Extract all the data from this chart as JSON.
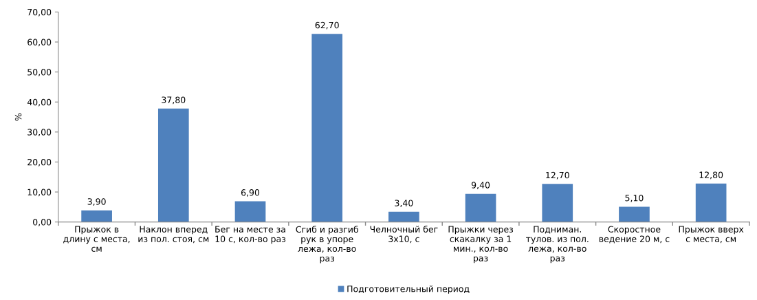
{
  "chart_data": {
    "type": "bar",
    "ylabel": "%",
    "categories": [
      "Прыжок в\nдлину с места,\nсм",
      "Наклон вперед\nиз пол. стоя, см",
      "Бег на месте за\n10 с, кол-во раз",
      "Сгиб и разгиб\nрук в упоре\nлежа, кол-во\nраз",
      "Челночный бег\n3х10, с",
      "Прыжки через\nскакалку за 1\nмин., кол-во\nраз",
      "Подниман.\nтулов. из пол.\nлежа, кол-во\nраз",
      "Скоростное\nведение 20 м, с",
      "Прыжок вверх\nс места, см"
    ],
    "series": [
      {
        "name": "Подготовительный период",
        "color": "#4f81bd",
        "values": [
          3.9,
          37.8,
          6.9,
          62.7,
          3.4,
          9.4,
          12.7,
          5.1,
          12.8
        ],
        "value_labels": [
          "3,90",
          "37,80",
          "6,90",
          "62,70",
          "3,40",
          "9,40",
          "12,70",
          "5,10",
          "12,80"
        ]
      }
    ],
    "ylim": [
      0,
      70
    ],
    "yticks": [
      {
        "value": 0,
        "label": "0,00"
      },
      {
        "value": 10,
        "label": "10,00"
      },
      {
        "value": 20,
        "label": "20,00"
      },
      {
        "value": 30,
        "label": "30,00"
      },
      {
        "value": 40,
        "label": "40,00"
      },
      {
        "value": 50,
        "label": "50,00"
      },
      {
        "value": 60,
        "label": "60,00"
      },
      {
        "value": 70,
        "label": "70,00"
      }
    ],
    "grid": false,
    "legend": "bottom"
  }
}
